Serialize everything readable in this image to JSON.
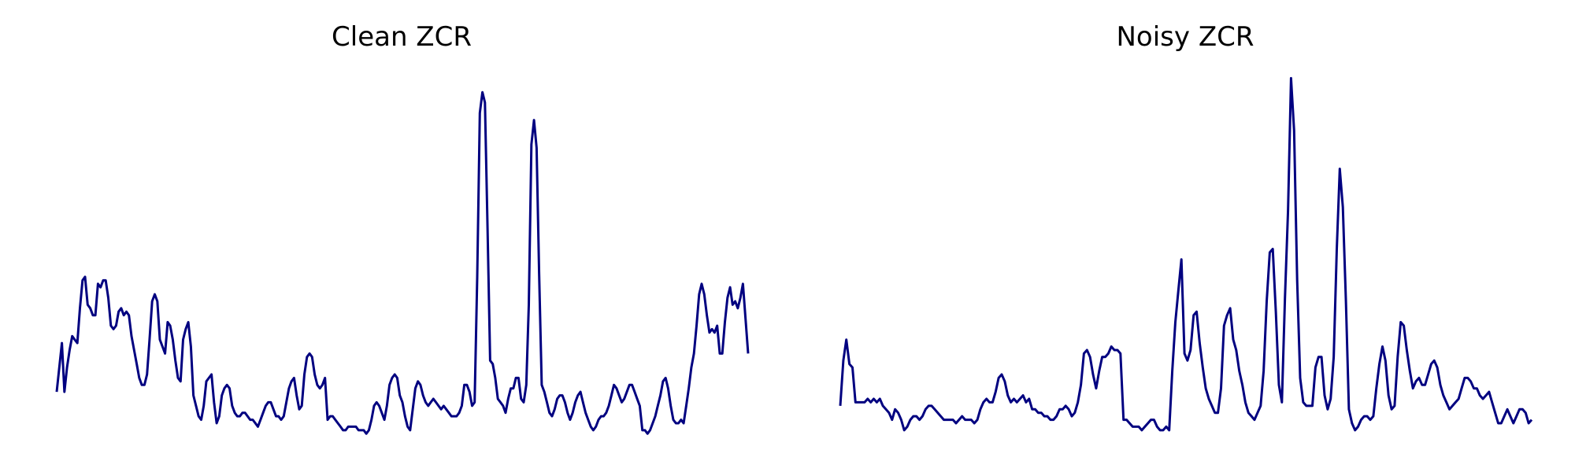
{
  "figure": {
    "line_color": "#000080",
    "background": "#ffffff"
  },
  "chart_data": [
    {
      "type": "line",
      "title": "Clean ZCR",
      "xlabel": "",
      "ylabel": "",
      "grid": false,
      "axes_visible": false,
      "y_scale": "normalized",
      "series": [
        {
          "values": [
            0.09,
            0.16,
            0.23,
            0.09,
            0.16,
            0.21,
            0.25,
            0.24,
            0.23,
            0.33,
            0.41,
            0.42,
            0.34,
            0.33,
            0.31,
            0.31,
            0.4,
            0.39,
            0.41,
            0.41,
            0.36,
            0.28,
            0.27,
            0.28,
            0.32,
            0.33,
            0.31,
            0.32,
            0.31,
            0.25,
            0.21,
            0.17,
            0.13,
            0.11,
            0.11,
            0.14,
            0.24,
            0.35,
            0.37,
            0.35,
            0.24,
            0.22,
            0.2,
            0.29,
            0.28,
            0.24,
            0.18,
            0.13,
            0.12,
            0.24,
            0.27,
            0.29,
            0.22,
            0.08,
            0.05,
            0.02,
            0.01,
            0.05,
            0.12,
            0.13,
            0.14,
            0.06,
            0.0,
            0.02,
            0.08,
            0.1,
            0.11,
            0.1,
            0.05,
            0.03,
            0.02,
            0.02,
            0.03,
            0.03,
            0.02,
            0.01,
            0.01,
            0.0,
            -0.01,
            0.01,
            0.03,
            0.05,
            0.06,
            0.06,
            0.04,
            0.02,
            0.02,
            0.01,
            0.02,
            0.06,
            0.1,
            0.12,
            0.13,
            0.08,
            0.04,
            0.05,
            0.14,
            0.19,
            0.2,
            0.19,
            0.14,
            0.11,
            0.1,
            0.11,
            0.13,
            0.01,
            0.02,
            0.02,
            0.01,
            0.0,
            -0.01,
            -0.02,
            -0.02,
            -0.01,
            -0.01,
            -0.01,
            -0.01,
            -0.02,
            -0.02,
            -0.02,
            -0.03,
            -0.02,
            0.01,
            0.05,
            0.06,
            0.05,
            0.03,
            0.01,
            0.05,
            0.11,
            0.13,
            0.14,
            0.13,
            0.08,
            0.06,
            0.02,
            -0.01,
            -0.02,
            0.04,
            0.1,
            0.12,
            0.11,
            0.08,
            0.06,
            0.05,
            0.06,
            0.07,
            0.06,
            0.05,
            0.04,
            0.05,
            0.04,
            0.03,
            0.02,
            0.02,
            0.02,
            0.03,
            0.05,
            0.11,
            0.11,
            0.09,
            0.05,
            0.06,
            0.42,
            0.89,
            0.95,
            0.92,
            0.56,
            0.18,
            0.17,
            0.13,
            0.07,
            0.06,
            0.05,
            0.03,
            0.07,
            0.1,
            0.1,
            0.13,
            0.13,
            0.07,
            0.06,
            0.11,
            0.34,
            0.8,
            0.87,
            0.79,
            0.43,
            0.11,
            0.09,
            0.06,
            0.03,
            0.02,
            0.04,
            0.07,
            0.08,
            0.08,
            0.06,
            0.03,
            0.01,
            0.03,
            0.06,
            0.08,
            0.09,
            0.06,
            0.03,
            0.01,
            -0.01,
            -0.02,
            -0.01,
            0.01,
            0.02,
            0.02,
            0.03,
            0.05,
            0.08,
            0.11,
            0.1,
            0.08,
            0.06,
            0.07,
            0.09,
            0.11,
            0.11,
            0.09,
            0.07,
            0.05,
            -0.02,
            -0.02,
            -0.03,
            -0.02,
            0.0,
            0.02,
            0.05,
            0.08,
            0.12,
            0.13,
            0.1,
            0.05,
            0.01,
            0.0,
            0.0,
            0.01,
            0.0,
            0.05,
            0.1,
            0.16,
            0.2,
            0.28,
            0.37,
            0.4,
            0.37,
            0.31,
            0.26,
            0.27,
            0.26,
            0.28,
            0.2,
            0.2,
            0.29,
            0.36,
            0.39,
            0.34,
            0.35,
            0.33,
            0.36,
            0.4,
            0.3,
            0.2
          ]
        }
      ]
    },
    {
      "type": "line",
      "title": "Noisy ZCR",
      "xlabel": "",
      "ylabel": "",
      "grid": false,
      "axes_visible": false,
      "y_scale": "normalized",
      "series": [
        {
          "values": [
            0.05,
            0.18,
            0.24,
            0.17,
            0.16,
            0.06,
            0.06,
            0.06,
            0.06,
            0.07,
            0.06,
            0.07,
            0.06,
            0.07,
            0.05,
            0.04,
            0.03,
            0.01,
            0.04,
            0.03,
            0.01,
            -0.02,
            -0.01,
            0.01,
            0.02,
            0.02,
            0.01,
            0.02,
            0.04,
            0.05,
            0.05,
            0.04,
            0.03,
            0.02,
            0.01,
            0.01,
            0.01,
            0.01,
            0.0,
            0.01,
            0.02,
            0.01,
            0.01,
            0.01,
            0.0,
            0.01,
            0.04,
            0.06,
            0.07,
            0.06,
            0.06,
            0.09,
            0.13,
            0.14,
            0.12,
            0.08,
            0.06,
            0.07,
            0.06,
            0.07,
            0.08,
            0.06,
            0.07,
            0.04,
            0.04,
            0.03,
            0.03,
            0.02,
            0.02,
            0.01,
            0.01,
            0.02,
            0.04,
            0.04,
            0.05,
            0.04,
            0.02,
            0.03,
            0.06,
            0.11,
            0.2,
            0.21,
            0.19,
            0.14,
            0.1,
            0.15,
            0.19,
            0.19,
            0.2,
            0.22,
            0.21,
            0.21,
            0.2,
            0.01,
            0.01,
            0.0,
            -0.01,
            -0.01,
            -0.01,
            -0.02,
            -0.01,
            0.0,
            0.01,
            0.01,
            -0.01,
            -0.02,
            -0.02,
            -0.01,
            -0.02,
            0.15,
            0.29,
            0.38,
            0.47,
            0.2,
            0.18,
            0.21,
            0.31,
            0.32,
            0.23,
            0.16,
            0.1,
            0.07,
            0.05,
            0.03,
            0.03,
            0.1,
            0.28,
            0.31,
            0.33,
            0.24,
            0.21,
            0.15,
            0.11,
            0.06,
            0.03,
            0.02,
            0.01,
            0.03,
            0.05,
            0.15,
            0.35,
            0.49,
            0.5,
            0.32,
            0.11,
            0.06,
            0.36,
            0.61,
            0.99,
            0.84,
            0.41,
            0.13,
            0.06,
            0.05,
            0.05,
            0.05,
            0.16,
            0.19,
            0.19,
            0.08,
            0.04,
            0.07,
            0.19,
            0.5,
            0.73,
            0.62,
            0.35,
            0.04,
            0.0,
            -0.02,
            -0.01,
            0.01,
            0.02,
            0.02,
            0.01,
            0.02,
            0.1,
            0.17,
            0.22,
            0.18,
            0.08,
            0.04,
            0.05,
            0.19,
            0.29,
            0.28,
            0.21,
            0.15,
            0.1,
            0.12,
            0.13,
            0.11,
            0.11,
            0.14,
            0.17,
            0.18,
            0.16,
            0.11,
            0.08,
            0.06,
            0.04,
            0.05,
            0.06,
            0.07,
            0.1,
            0.13,
            0.13,
            0.12,
            0.1,
            0.1,
            0.08,
            0.07,
            0.08,
            0.09,
            0.06,
            0.03,
            0.0,
            0.0,
            0.02,
            0.04,
            0.02,
            0.0,
            0.02,
            0.04,
            0.04,
            0.03,
            0.0,
            0.01
          ]
        }
      ]
    }
  ]
}
